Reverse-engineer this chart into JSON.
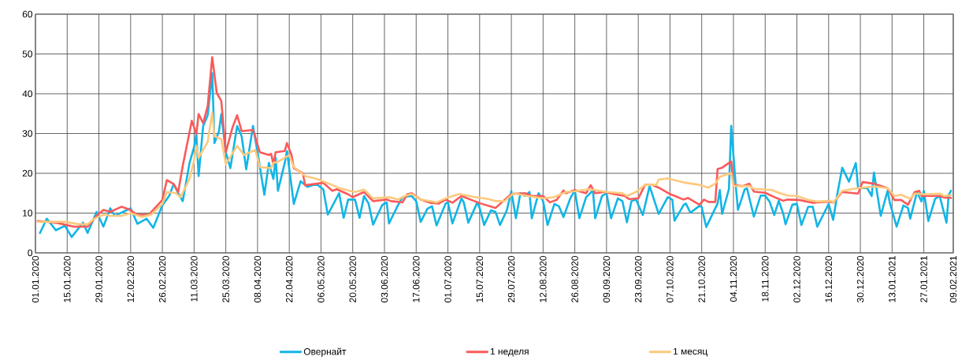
{
  "chart_data": {
    "type": "line",
    "xlim": [
      "2020-01-01",
      "2021-02-09"
    ],
    "xticks": [
      {
        "value": "2020-01-01",
        "label": "01.01.2020"
      },
      {
        "value": "2020-01-15",
        "label": "15.01.2020"
      },
      {
        "value": "2020-01-29",
        "label": "29.01.2020"
      },
      {
        "value": "2020-02-12",
        "label": "12.02.2020"
      },
      {
        "value": "2020-02-26",
        "label": "26.02.2020"
      },
      {
        "value": "2020-03-11",
        "label": "11.03.2020"
      },
      {
        "value": "2020-03-25",
        "label": "25.03.2020"
      },
      {
        "value": "2020-04-08",
        "label": "08.04.2020"
      },
      {
        "value": "2020-04-22",
        "label": "22.04.2020"
      },
      {
        "value": "2020-05-06",
        "label": "06.05.2020"
      },
      {
        "value": "2020-05-20",
        "label": "20.05.2020"
      },
      {
        "value": "2020-06-03",
        "label": "03.06.2020"
      },
      {
        "value": "2020-06-17",
        "label": "17.06.2020"
      },
      {
        "value": "2020-07-01",
        "label": "01.07.2020"
      },
      {
        "value": "2020-07-15",
        "label": "15.07.2020"
      },
      {
        "value": "2020-07-29",
        "label": "29.07.2020"
      },
      {
        "value": "2020-08-12",
        "label": "12.08.2020"
      },
      {
        "value": "2020-08-26",
        "label": "26.08.2020"
      },
      {
        "value": "2020-09-09",
        "label": "09.09.2020"
      },
      {
        "value": "2020-09-23",
        "label": "23.09.2020"
      },
      {
        "value": "2020-10-07",
        "label": "07.10.2020"
      },
      {
        "value": "2020-10-21",
        "label": "21.10.2020"
      },
      {
        "value": "2020-11-04",
        "label": "04.11.2020"
      },
      {
        "value": "2020-11-18",
        "label": "18.11.2020"
      },
      {
        "value": "2020-12-02",
        "label": "02.12.2020"
      },
      {
        "value": "2020-12-16",
        "label": "16.12.2020"
      },
      {
        "value": "2020-12-30",
        "label": "30.12.2020"
      },
      {
        "value": "2021-01-13",
        "label": "13.01.2021"
      },
      {
        "value": "2021-01-27",
        "label": "27.01.2021"
      },
      {
        "value": "2021-02-09",
        "label": "09.02.2021"
      }
    ],
    "ylim": [
      0,
      60
    ],
    "yticks": [
      0,
      10,
      20,
      30,
      40,
      50,
      60
    ],
    "grid": true,
    "legend": "bottom",
    "series": [
      {
        "name": "Овернайт",
        "color": "#12b5e6",
        "x": [
          "2020-01-03",
          "2020-01-06",
          "2020-01-10",
          "2020-01-14",
          "2020-01-17",
          "2020-01-22",
          "2020-01-24",
          "2020-01-28",
          "2020-01-31",
          "2020-02-03",
          "2020-02-05",
          "2020-02-12",
          "2020-02-15",
          "2020-02-19",
          "2020-02-22",
          "2020-02-26",
          "2020-02-29",
          "2020-03-02",
          "2020-03-04",
          "2020-03-06",
          "2020-03-09",
          "2020-03-11",
          "2020-03-12",
          "2020-03-13",
          "2020-03-15",
          "2020-03-17",
          "2020-03-19",
          "2020-03-20",
          "2020-03-22",
          "2020-03-23",
          "2020-03-25",
          "2020-03-27",
          "2020-03-30",
          "2020-04-01",
          "2020-04-03",
          "2020-04-06",
          "2020-04-08",
          "2020-04-11",
          "2020-04-13",
          "2020-04-15",
          "2020-04-16",
          "2020-04-17",
          "2020-04-20",
          "2020-04-21",
          "2020-04-24",
          "2020-04-27",
          "2020-04-30",
          "2020-05-04",
          "2020-05-07",
          "2020-05-09",
          "2020-05-14",
          "2020-05-16",
          "2020-05-18",
          "2020-05-21",
          "2020-05-23",
          "2020-05-25",
          "2020-05-27",
          "2020-05-29",
          "2020-06-02",
          "2020-06-04",
          "2020-06-05",
          "2020-06-09",
          "2020-06-11",
          "2020-06-15",
          "2020-06-17",
          "2020-06-19",
          "2020-06-22",
          "2020-06-24",
          "2020-06-26",
          "2020-06-30",
          "2020-07-01",
          "2020-07-03",
          "2020-07-07",
          "2020-07-08",
          "2020-07-10",
          "2020-07-14",
          "2020-07-15",
          "2020-07-17",
          "2020-07-20",
          "2020-07-22",
          "2020-07-24",
          "2020-07-27",
          "2020-07-29",
          "2020-07-31",
          "2020-08-02",
          "2020-08-04",
          "2020-08-06",
          "2020-08-07",
          "2020-08-10",
          "2020-08-12",
          "2020-08-14",
          "2020-08-17",
          "2020-08-19",
          "2020-08-21",
          "2020-08-24",
          "2020-08-26",
          "2020-08-28",
          "2020-08-31",
          "2020-09-03",
          "2020-09-04",
          "2020-09-07",
          "2020-09-09",
          "2020-09-11",
          "2020-09-14",
          "2020-09-16",
          "2020-09-18",
          "2020-09-20",
          "2020-09-22",
          "2020-09-25",
          "2020-09-28",
          "2020-10-02",
          "2020-10-06",
          "2020-10-08",
          "2020-10-09",
          "2020-10-13",
          "2020-10-14",
          "2020-10-16",
          "2020-10-20",
          "2020-10-21",
          "2020-10-23",
          "2020-10-28",
          "2020-10-29",
          "2020-10-30",
          "2020-11-02",
          "2020-11-03",
          "2020-11-05",
          "2020-11-06",
          "2020-11-09",
          "2020-11-10",
          "2020-11-13",
          "2020-11-16",
          "2020-11-18",
          "2020-11-20",
          "2020-11-22",
          "2020-11-24",
          "2020-11-26",
          "2020-11-27",
          "2020-11-30",
          "2020-12-02",
          "2020-12-04",
          "2020-12-07",
          "2020-12-09",
          "2020-12-11",
          "2020-12-14",
          "2020-12-16",
          "2020-12-18",
          "2020-12-20",
          "2020-12-22",
          "2020-12-25",
          "2020-12-28",
          "2020-12-29",
          "2021-01-02",
          "2021-01-04",
          "2021-01-05",
          "2021-01-08",
          "2021-01-11",
          "2021-01-12",
          "2021-01-15",
          "2021-01-18",
          "2021-01-20",
          "2021-01-21",
          "2021-01-24",
          "2021-01-26",
          "2021-01-27",
          "2021-01-29",
          "2021-02-01",
          "2021-02-03",
          "2021-02-06",
          "2021-02-07",
          "2021-02-08"
        ],
        "values": [
          5,
          8.6,
          5.7,
          6.8,
          4,
          7.6,
          5,
          10.3,
          6.6,
          11.2,
          9.3,
          11.2,
          7.3,
          8.6,
          6.3,
          12,
          14.3,
          17.3,
          15,
          13,
          22.6,
          26.6,
          29.9,
          19.3,
          31.9,
          34.6,
          45.2,
          27.6,
          30.6,
          34.9,
          25.3,
          21.3,
          31.9,
          29.3,
          21,
          31.9,
          25.3,
          14.6,
          22.6,
          18.6,
          23.9,
          15.6,
          22.6,
          25.6,
          12.3,
          18,
          16.6,
          17.3,
          16,
          9.6,
          15,
          8.8,
          13.4,
          13.4,
          8.8,
          14.3,
          12.4,
          7.1,
          12,
          12.7,
          7.4,
          12,
          14,
          14.3,
          13,
          7.8,
          11.1,
          11.7,
          6.9,
          12.4,
          12.7,
          7.4,
          13.7,
          12.7,
          7.6,
          12.7,
          11.3,
          7,
          10.7,
          10.3,
          7,
          10.7,
          15.5,
          8.7,
          15,
          14.3,
          15.3,
          8.7,
          15,
          13,
          7,
          12.3,
          11.7,
          9,
          13.7,
          15.7,
          8.7,
          14,
          15.7,
          8.7,
          14.3,
          15,
          8.7,
          13.7,
          13,
          7.7,
          13,
          13.4,
          9.5,
          16.8,
          9.8,
          14,
          13.4,
          8.1,
          12,
          12.4,
          10.1,
          11.8,
          11.5,
          6.5,
          12.4,
          15.8,
          9.8,
          16,
          31.9,
          17,
          10.8,
          16,
          16.2,
          9.1,
          14.4,
          14.4,
          12.8,
          9.5,
          13.1,
          9.8,
          7.2,
          12.1,
          12.3,
          7,
          11.6,
          11.6,
          6.6,
          10,
          12.3,
          8.3,
          15.3,
          21.4,
          17.9,
          22.6,
          16.3,
          16.3,
          14.3,
          20.2,
          9.3,
          15.6,
          12.6,
          6.6,
          11.9,
          11.3,
          8.6,
          15.3,
          12.9,
          15.6,
          8,
          13.6,
          14.3,
          7.6,
          14.6,
          15.6
        ]
      },
      {
        "name": "1 неделя",
        "color": "#fa5a5a",
        "x": [
          "2020-01-02",
          "2020-01-10",
          "2020-01-18",
          "2020-01-24",
          "2020-01-28",
          "2020-01-31",
          "2020-02-03",
          "2020-02-08",
          "2020-02-11",
          "2020-02-15",
          "2020-02-20",
          "2020-02-26",
          "2020-02-28",
          "2020-03-02",
          "2020-03-04",
          "2020-03-06",
          "2020-03-10",
          "2020-03-12",
          "2020-03-13",
          "2020-03-15",
          "2020-03-17",
          "2020-03-19",
          "2020-03-21",
          "2020-03-23",
          "2020-03-25",
          "2020-03-28",
          "2020-03-30",
          "2020-04-01",
          "2020-04-06",
          "2020-04-09",
          "2020-04-13",
          "2020-04-14",
          "2020-04-15",
          "2020-04-16",
          "2020-04-20",
          "2020-04-21",
          "2020-04-23",
          "2020-04-24",
          "2020-04-28",
          "2020-04-29",
          "2020-05-07",
          "2020-05-11",
          "2020-05-13",
          "2020-05-18",
          "2020-05-20",
          "2020-05-25",
          "2020-05-29",
          "2020-06-04",
          "2020-06-06",
          "2020-06-11",
          "2020-06-13",
          "2020-06-15",
          "2020-06-19",
          "2020-06-23",
          "2020-06-27",
          "2020-06-30",
          "2020-07-03",
          "2020-07-07",
          "2020-07-11",
          "2020-07-15",
          "2020-07-22",
          "2020-07-24",
          "2020-07-29",
          "2020-08-04",
          "2020-08-07",
          "2020-08-12",
          "2020-08-15",
          "2020-08-18",
          "2020-08-21",
          "2020-08-22",
          "2020-08-26",
          "2020-08-31",
          "2020-09-02",
          "2020-09-04",
          "2020-09-08",
          "2020-09-13",
          "2020-09-17",
          "2020-09-19",
          "2020-09-23",
          "2020-09-26",
          "2020-09-29",
          "2020-10-02",
          "2020-10-07",
          "2020-10-13",
          "2020-10-15",
          "2020-10-20",
          "2020-10-22",
          "2020-10-24",
          "2020-10-27",
          "2020-10-28",
          "2020-10-30",
          "2020-11-03",
          "2020-11-04",
          "2020-11-08",
          "2020-11-11",
          "2020-11-13",
          "2020-11-18",
          "2020-11-23",
          "2020-11-26",
          "2020-11-28",
          "2020-12-03",
          "2020-12-09",
          "2020-12-16",
          "2020-12-18",
          "2020-12-22",
          "2020-12-29",
          "2020-12-31",
          "2021-01-05",
          "2021-01-11",
          "2021-01-14",
          "2021-01-17",
          "2021-01-20",
          "2021-01-23",
          "2021-01-25",
          "2021-01-26",
          "2021-02-03",
          "2021-02-05",
          "2021-02-08"
        ],
        "values": [
          8,
          7.6,
          6.6,
          6.6,
          9.3,
          10.8,
          10.3,
          11.6,
          11,
          9.6,
          9.6,
          13.3,
          18.3,
          17.3,
          15.3,
          21.9,
          33.2,
          29.9,
          34.9,
          32.6,
          36.9,
          49.2,
          40.2,
          38.2,
          25.3,
          31.6,
          34.6,
          30.6,
          30.9,
          25.3,
          24.6,
          24.9,
          22.3,
          25.3,
          25.6,
          27.6,
          24.6,
          21.3,
          20,
          17,
          17.6,
          15.6,
          16,
          14.7,
          14,
          15.3,
          13,
          13.4,
          13,
          12.7,
          14.7,
          15,
          13.4,
          12.6,
          12.4,
          13.4,
          12.6,
          14.3,
          13.4,
          12.5,
          11.3,
          12.3,
          14.8,
          15,
          14.3,
          14.3,
          12.7,
          13.3,
          15.7,
          15,
          15.8,
          15,
          17,
          15,
          15.3,
          14.7,
          14.3,
          13.5,
          13.7,
          17.1,
          17.1,
          16.4,
          14.8,
          13.4,
          13.8,
          12.1,
          13.4,
          12.8,
          12.8,
          21.1,
          21.4,
          23,
          17.1,
          16.8,
          17.4,
          15.4,
          15.1,
          13.8,
          13.1,
          13.4,
          13.3,
          12.6,
          12.9,
          12.6,
          15.3,
          14.9,
          17.8,
          17.4,
          16.3,
          13.3,
          13.3,
          12.1,
          15.3,
          15.6,
          14.3,
          14.3,
          13.9,
          13.8
        ]
      },
      {
        "name": "1 месяц",
        "color": "#fdc97d",
        "x": [
          "2020-01-02",
          "2020-01-14",
          "2020-01-20",
          "2020-01-24",
          "2020-01-27",
          "2020-01-31",
          "2020-02-03",
          "2020-02-08",
          "2020-02-12",
          "2020-02-17",
          "2020-02-21",
          "2020-02-26",
          "2020-02-28",
          "2020-03-03",
          "2020-03-05",
          "2020-03-09",
          "2020-03-11",
          "2020-03-12",
          "2020-03-13",
          "2020-03-17",
          "2020-03-19",
          "2020-03-20",
          "2020-03-23",
          "2020-03-25",
          "2020-03-30",
          "2020-04-02",
          "2020-04-07",
          "2020-04-09",
          "2020-04-14",
          "2020-04-15",
          "2020-04-17",
          "2020-04-22",
          "2020-04-24",
          "2020-04-29",
          "2020-05-04",
          "2020-05-10",
          "2020-05-14",
          "2020-05-18",
          "2020-05-21",
          "2020-05-25",
          "2020-05-29",
          "2020-06-05",
          "2020-06-09",
          "2020-06-12",
          "2020-06-15",
          "2020-06-19",
          "2020-06-26",
          "2020-06-30",
          "2020-07-06",
          "2020-07-12",
          "2020-07-19",
          "2020-07-22",
          "2020-07-26",
          "2020-07-30",
          "2020-08-05",
          "2020-08-12",
          "2020-08-17",
          "2020-08-22",
          "2020-08-26",
          "2020-09-01",
          "2020-09-04",
          "2020-09-09",
          "2020-09-16",
          "2020-09-18",
          "2020-09-22",
          "2020-09-26",
          "2020-10-01",
          "2020-10-02",
          "2020-10-06",
          "2020-10-13",
          "2020-10-20",
          "2020-10-24",
          "2020-10-27",
          "2020-10-29",
          "2020-11-03",
          "2020-11-04",
          "2020-11-11",
          "2020-11-13",
          "2020-11-21",
          "2020-11-24",
          "2020-11-28",
          "2020-12-02",
          "2020-12-07",
          "2020-12-11",
          "2020-12-17",
          "2020-12-18",
          "2020-12-22",
          "2020-12-29",
          "2021-01-05",
          "2021-01-11",
          "2021-01-14",
          "2021-01-17",
          "2021-01-21",
          "2021-01-23",
          "2021-01-28",
          "2021-02-03",
          "2021-02-05",
          "2021-02-08"
        ],
        "values": [
          7.8,
          7.8,
          7.2,
          7.2,
          8.6,
          9.6,
          9.3,
          9.3,
          10,
          9,
          9.6,
          12.3,
          15.3,
          15,
          14,
          18.6,
          23.3,
          26.9,
          23.9,
          27.9,
          35.2,
          29.3,
          28.6,
          22.3,
          26.9,
          24.6,
          25.9,
          21.6,
          21.3,
          22.6,
          22.9,
          24.6,
          21.6,
          19.3,
          18.6,
          17.3,
          16.3,
          15.7,
          15.3,
          15.9,
          13.7,
          14,
          13.4,
          14.3,
          14.8,
          13.4,
          12.7,
          13.7,
          14.8,
          14.1,
          13.5,
          13,
          13,
          15,
          14.3,
          13.7,
          14,
          15.3,
          15.5,
          16,
          15.8,
          15.3,
          15,
          14.3,
          15.3,
          17.1,
          17.1,
          18.4,
          18.7,
          17.7,
          17.1,
          16.4,
          17.4,
          19.1,
          20.1,
          16.8,
          16.8,
          16.1,
          15.8,
          15.1,
          14.4,
          14.3,
          13.3,
          12.9,
          13.1,
          12.6,
          15.6,
          16.3,
          16.7,
          16.3,
          14.3,
          14.6,
          13.6,
          14.9,
          14.7,
          14.9,
          14.3,
          14.5
        ]
      }
    ]
  }
}
